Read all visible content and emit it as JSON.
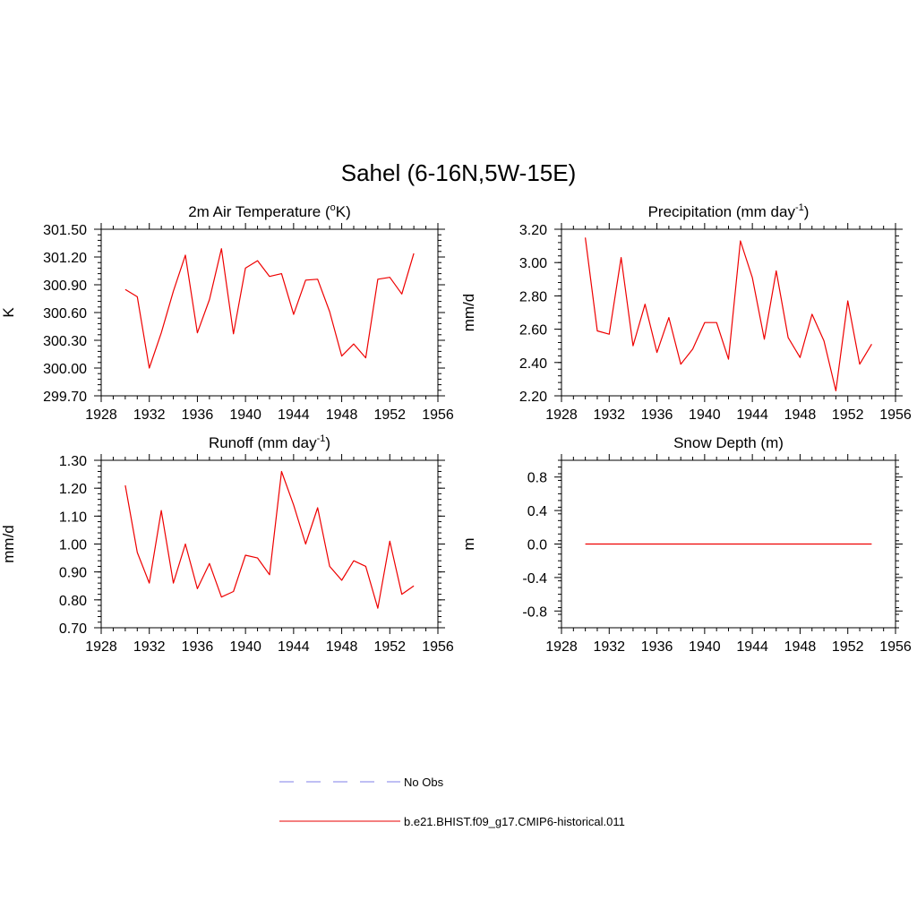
{
  "figure": {
    "title": "Sahel (6-16N,5W-15E)"
  },
  "legend": {
    "entries": [
      {
        "label": "No Obs",
        "color": "#9999ee",
        "dashed": true
      },
      {
        "label": "b.e21.BHIST.f09_g17.CMIP6-historical.011",
        "color": "#ee3333",
        "dashed": false
      }
    ]
  },
  "chart_data": [
    {
      "type": "line",
      "title_main": "2m Air Temperature (",
      "title_sup": "o",
      "title_end": "K)",
      "ylabel": "K",
      "xlim": [
        1928,
        1956
      ],
      "xticks": [
        1928,
        1932,
        1936,
        1940,
        1944,
        1948,
        1952,
        1956
      ],
      "ylim": [
        299.7,
        301.5
      ],
      "yticks": [
        299.7,
        300.0,
        300.3,
        300.6,
        300.9,
        301.2,
        301.5
      ],
      "ytick_labels": [
        "299.70",
        "300.00",
        "300.30",
        "300.60",
        "300.90",
        "301.20",
        "301.50"
      ],
      "series": [
        {
          "color": "#ee0000",
          "x": [
            1930,
            1931,
            1932,
            1933,
            1934,
            1935,
            1936,
            1937,
            1938,
            1939,
            1940,
            1941,
            1942,
            1943,
            1944,
            1945,
            1946,
            1947,
            1948,
            1949,
            1950,
            1951,
            1952,
            1953,
            1954
          ],
          "values": [
            300.85,
            300.77,
            300.0,
            300.38,
            300.83,
            301.22,
            300.38,
            300.74,
            301.29,
            300.37,
            301.08,
            301.16,
            300.99,
            301.02,
            300.58,
            300.95,
            300.96,
            300.61,
            300.13,
            300.26,
            300.11,
            300.96,
            300.98,
            300.8,
            301.24
          ]
        }
      ]
    },
    {
      "type": "line",
      "title_main": "Precipitation (mm day",
      "title_sup": "-1",
      "title_end": ")",
      "ylabel": "mm/d",
      "xlim": [
        1928,
        1956
      ],
      "xticks": [
        1928,
        1932,
        1936,
        1940,
        1944,
        1948,
        1952,
        1956
      ],
      "ylim": [
        2.2,
        3.2
      ],
      "yticks": [
        2.2,
        2.4,
        2.6,
        2.8,
        3.0,
        3.2
      ],
      "ytick_labels": [
        "2.20",
        "2.40",
        "2.60",
        "2.80",
        "3.00",
        "3.20"
      ],
      "series": [
        {
          "color": "#ee0000",
          "x": [
            1930,
            1931,
            1932,
            1933,
            1934,
            1935,
            1936,
            1937,
            1938,
            1939,
            1940,
            1941,
            1942,
            1943,
            1944,
            1945,
            1946,
            1947,
            1948,
            1949,
            1950,
            1951,
            1952,
            1953,
            1954
          ],
          "values": [
            3.15,
            2.59,
            2.57,
            3.03,
            2.5,
            2.75,
            2.46,
            2.67,
            2.39,
            2.48,
            2.64,
            2.64,
            2.42,
            3.13,
            2.91,
            2.54,
            2.95,
            2.55,
            2.43,
            2.69,
            2.53,
            2.23,
            2.77,
            2.39,
            2.51
          ]
        }
      ]
    },
    {
      "type": "line",
      "title_main": "Runoff (mm day",
      "title_sup": "-1",
      "title_end": ")",
      "ylabel": "mm/d",
      "xlim": [
        1928,
        1956
      ],
      "xticks": [
        1928,
        1932,
        1936,
        1940,
        1944,
        1948,
        1952,
        1956
      ],
      "ylim": [
        0.7,
        1.3
      ],
      "yticks": [
        0.7,
        0.8,
        0.9,
        1.0,
        1.1,
        1.2,
        1.3
      ],
      "ytick_labels": [
        "0.70",
        "0.80",
        "0.90",
        "1.00",
        "1.10",
        "1.20",
        "1.30"
      ],
      "series": [
        {
          "color": "#ee0000",
          "x": [
            1930,
            1931,
            1932,
            1933,
            1934,
            1935,
            1936,
            1937,
            1938,
            1939,
            1940,
            1941,
            1942,
            1943,
            1944,
            1945,
            1946,
            1947,
            1948,
            1949,
            1950,
            1951,
            1952,
            1953,
            1954
          ],
          "values": [
            1.21,
            0.97,
            0.86,
            1.12,
            0.86,
            1.0,
            0.84,
            0.93,
            0.81,
            0.83,
            0.96,
            0.95,
            0.89,
            1.26,
            1.14,
            1.0,
            1.13,
            0.92,
            0.87,
            0.94,
            0.92,
            0.77,
            1.01,
            0.82,
            0.85
          ]
        }
      ]
    },
    {
      "type": "line",
      "title_main": "Snow Depth (m)",
      "title_sup": "",
      "title_end": "",
      "ylabel": "m",
      "xlim": [
        1928,
        1956
      ],
      "xticks": [
        1928,
        1932,
        1936,
        1940,
        1944,
        1948,
        1952,
        1956
      ],
      "ylim": [
        -1.0,
        1.0
      ],
      "yticks": [
        -0.8,
        -0.4,
        0.0,
        0.4,
        0.8
      ],
      "ytick_labels": [
        "-0.8",
        "-0.4",
        "0.0",
        "0.4",
        "0.8"
      ],
      "series": [
        {
          "color": "#ee0000",
          "x": [
            1930,
            1931,
            1932,
            1933,
            1934,
            1935,
            1936,
            1937,
            1938,
            1939,
            1940,
            1941,
            1942,
            1943,
            1944,
            1945,
            1946,
            1947,
            1948,
            1949,
            1950,
            1951,
            1952,
            1953,
            1954
          ],
          "values": [
            0,
            0,
            0,
            0,
            0,
            0,
            0,
            0,
            0,
            0,
            0,
            0,
            0,
            0,
            0,
            0,
            0,
            0,
            0,
            0,
            0,
            0,
            0,
            0,
            0
          ]
        }
      ]
    }
  ]
}
